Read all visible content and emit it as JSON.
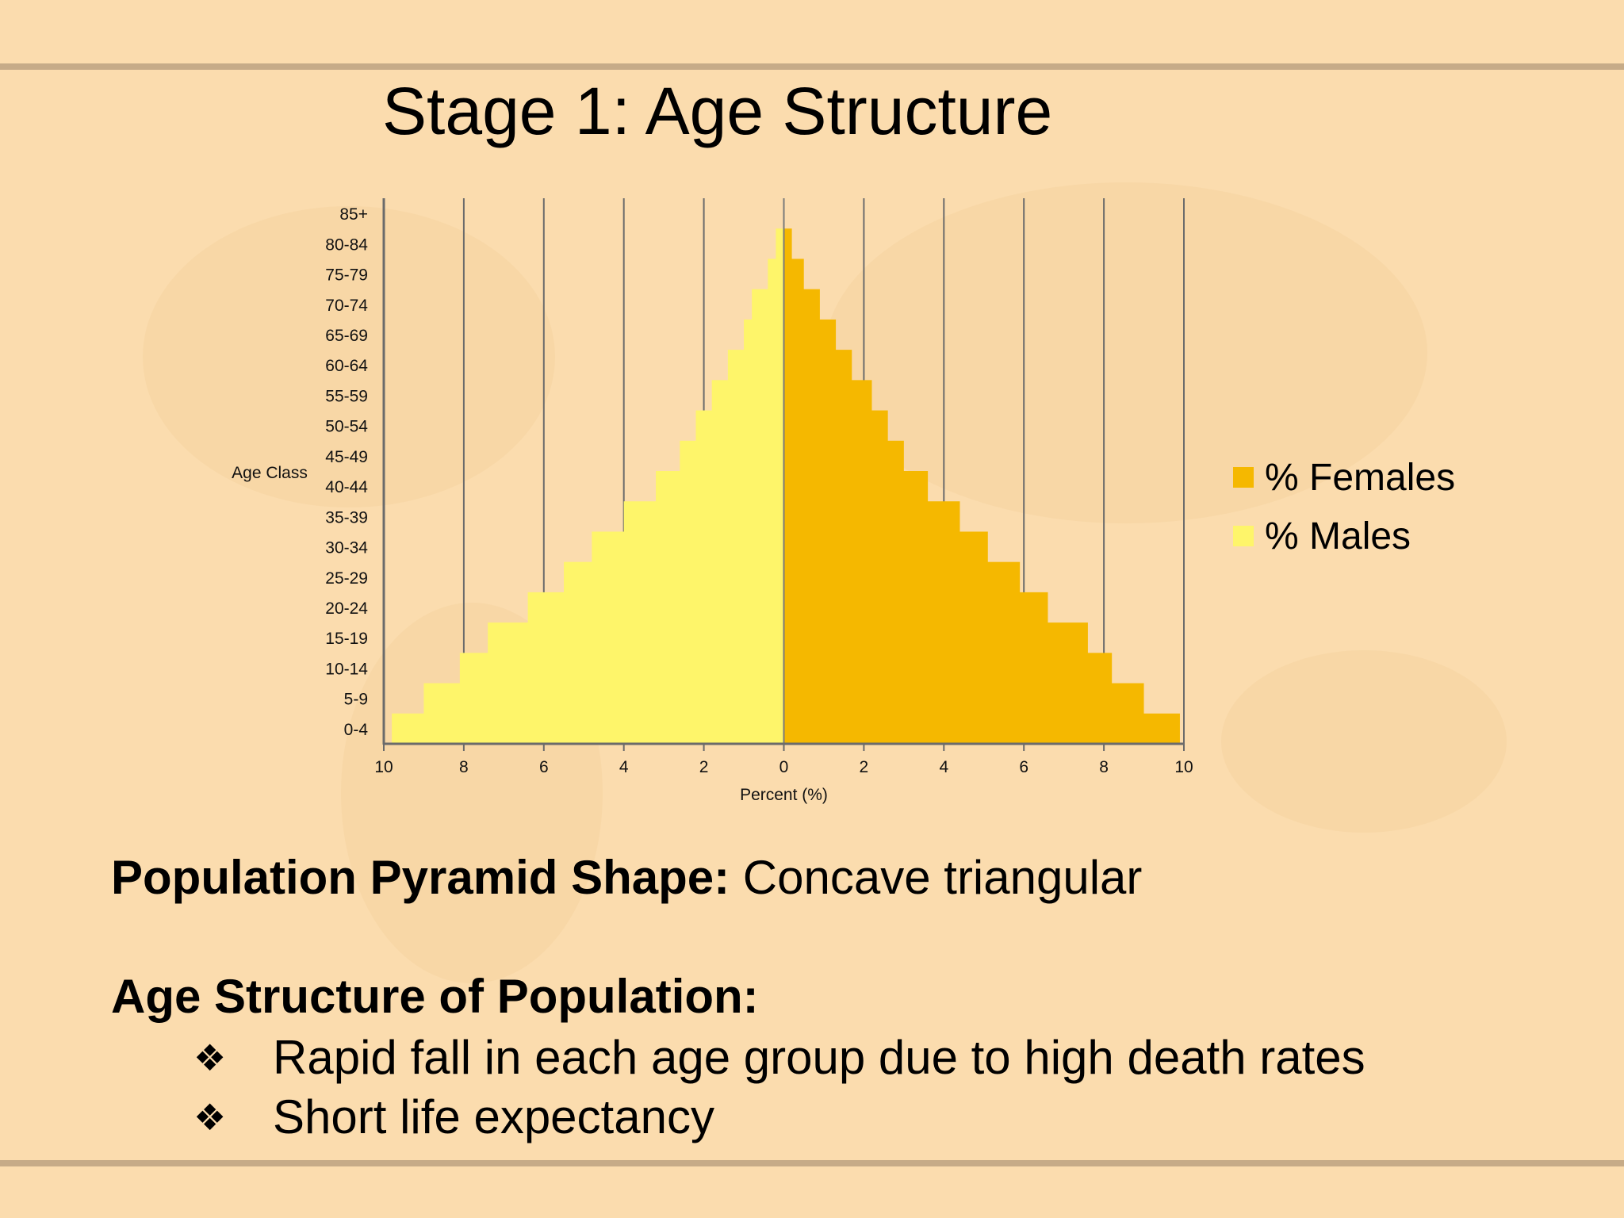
{
  "slide": {
    "title": "Stage 1: Age Structure",
    "shape_label": "Population Pyramid Shape:",
    "shape_value": "Concave triangular",
    "section_heading": "Age Structure of Population:",
    "bullets": [
      "Rapid fall in each age group due to high death rates",
      "Short life expectancy"
    ],
    "bullet_icon": "four-diamond-bullet-icon"
  },
  "colors": {
    "background": "#fbdcae",
    "females": "#f5b800",
    "males": "#fef56a"
  },
  "chart_data": {
    "type": "bar",
    "orientation": "horizontal",
    "variant": "population-pyramid",
    "categories": [
      "85+",
      "80-84",
      "75-79",
      "70-74",
      "65-69",
      "60-64",
      "55-59",
      "50-54",
      "45-49",
      "40-44",
      "35-39",
      "30-34",
      "25-29",
      "20-24",
      "15-19",
      "10-14",
      "5-9",
      "0-4"
    ],
    "series": [
      {
        "name": "% Females",
        "side": "right",
        "color": "#f5b800",
        "values": [
          0.0,
          0.2,
          0.5,
          0.9,
          1.3,
          1.7,
          2.2,
          2.6,
          3.0,
          3.6,
          4.4,
          5.1,
          5.9,
          6.6,
          7.6,
          8.2,
          9.0,
          9.9
        ]
      },
      {
        "name": "% Males",
        "side": "left",
        "color": "#fef56a",
        "values": [
          0.0,
          0.2,
          0.4,
          0.8,
          1.0,
          1.4,
          1.8,
          2.2,
          2.6,
          3.2,
          4.0,
          4.8,
          5.5,
          6.4,
          7.4,
          8.1,
          9.0,
          9.8
        ]
      }
    ],
    "xlabel": "Percent (%)",
    "ylabel": "Age Class",
    "xlim": [
      -10,
      10
    ],
    "xticks": [
      -10,
      -8,
      -6,
      -4,
      -2,
      0,
      2,
      4,
      6,
      8,
      10
    ],
    "xtick_labels": [
      "10",
      "8",
      "6",
      "4",
      "2",
      "0",
      "2",
      "4",
      "6",
      "8",
      "10"
    ],
    "grid": "vertical",
    "legend_position": "right"
  }
}
